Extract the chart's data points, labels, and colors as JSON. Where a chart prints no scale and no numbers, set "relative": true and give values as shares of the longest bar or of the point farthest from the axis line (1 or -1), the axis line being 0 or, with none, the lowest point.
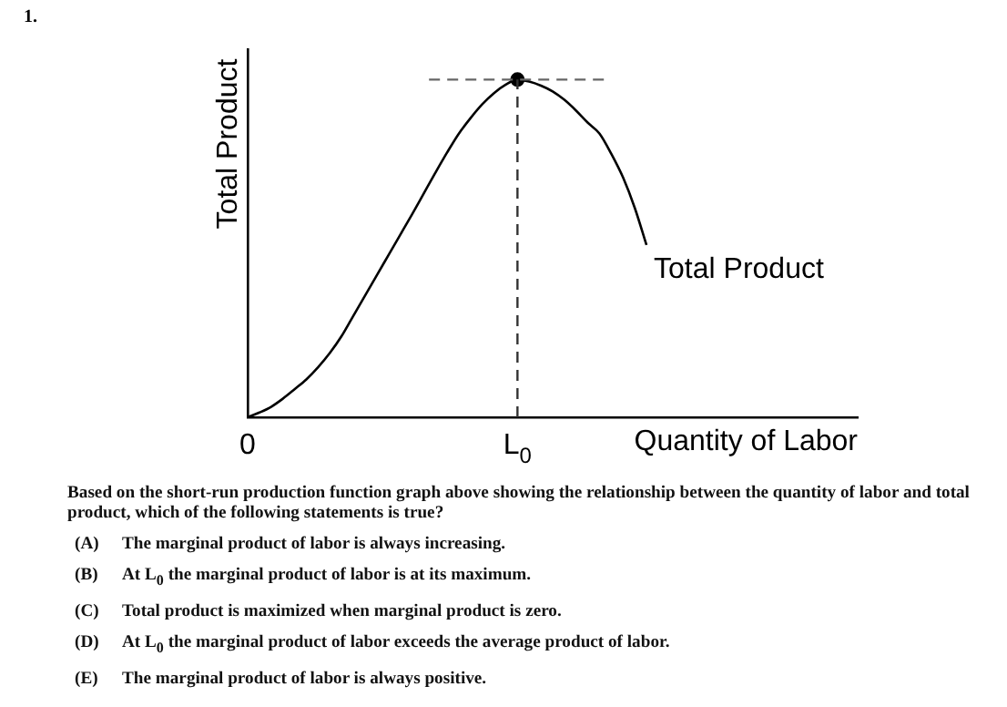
{
  "chart_data": {
    "type": "line",
    "relative": true,
    "xlabel": "Quantity of Labor",
    "ylabel": "Total Product",
    "legend": false,
    "grid": false,
    "tick_labels": "x",
    "categories": [
      "0",
      null,
      null,
      null,
      null,
      null,
      null,
      null,
      null,
      null,
      null,
      null,
      null,
      null,
      null,
      null,
      null,
      null,
      null,
      null,
      null,
      null,
      null,
      "L$_{0}$",
      null,
      null,
      null,
      null,
      null,
      null,
      null,
      null,
      null,
      null,
      null,
      null,
      null,
      null,
      null,
      null,
      null,
      null,
      null,
      null,
      null,
      null,
      null,
      null,
      null,
      null,
      null,
      null,
      null
    ],
    "series": [
      {
        "name": "Total Product",
        "color": "#000000",
        "marker": "none",
        "values": [
          0,
          0.014,
          0.031,
          0.055,
          0.083,
          0.112,
          0.148,
          0.19,
          0.24,
          0.3,
          0.36,
          0.42,
          0.48,
          0.54,
          0.6,
          0.662,
          0.724,
          0.784,
          0.84,
          0.886,
          0.927,
          0.96,
          0.985,
          1,
          0.994,
          0.982,
          0.965,
          0.94,
          0.908,
          0.872,
          0.84,
          0.78,
          0.71,
          0.62,
          0.51,
          null,
          null,
          null,
          null,
          null,
          null,
          null,
          null,
          null,
          null,
          null,
          null,
          null,
          null,
          null,
          null,
          null,
          null
        ]
      },
      {
        "type": "scatter",
        "x": [
          "L$_{0}$"
        ],
        "values": [
          1
        ],
        "marker": "circle",
        "color": "#000000"
      }
    ],
    "ref_lines": [
      {
        "axis": "x",
        "value": "L$_{0}$",
        "line_style": "dashed",
        "color": "#333333"
      },
      {
        "axis": "y",
        "value": 1,
        "line_style": "dashed",
        "color": "#666666"
      }
    ],
    "annotations": [
      "1.",
      "Based on the short-run production function graph above showing the relationship between the quantity of labor and total product, which of the following statements is true?",
      "(A) The marginal product of labor is always increasing.",
      "(B) At L$_{0}$ the marginal product of labor is at its maximum.",
      "(C) Total product is maximized when marginal product is zero.",
      "(D) At L$_{0}$ the marginal product of labor exceeds the average product of labor.",
      "(E) The marginal product of labor is always positive."
    ]
  }
}
